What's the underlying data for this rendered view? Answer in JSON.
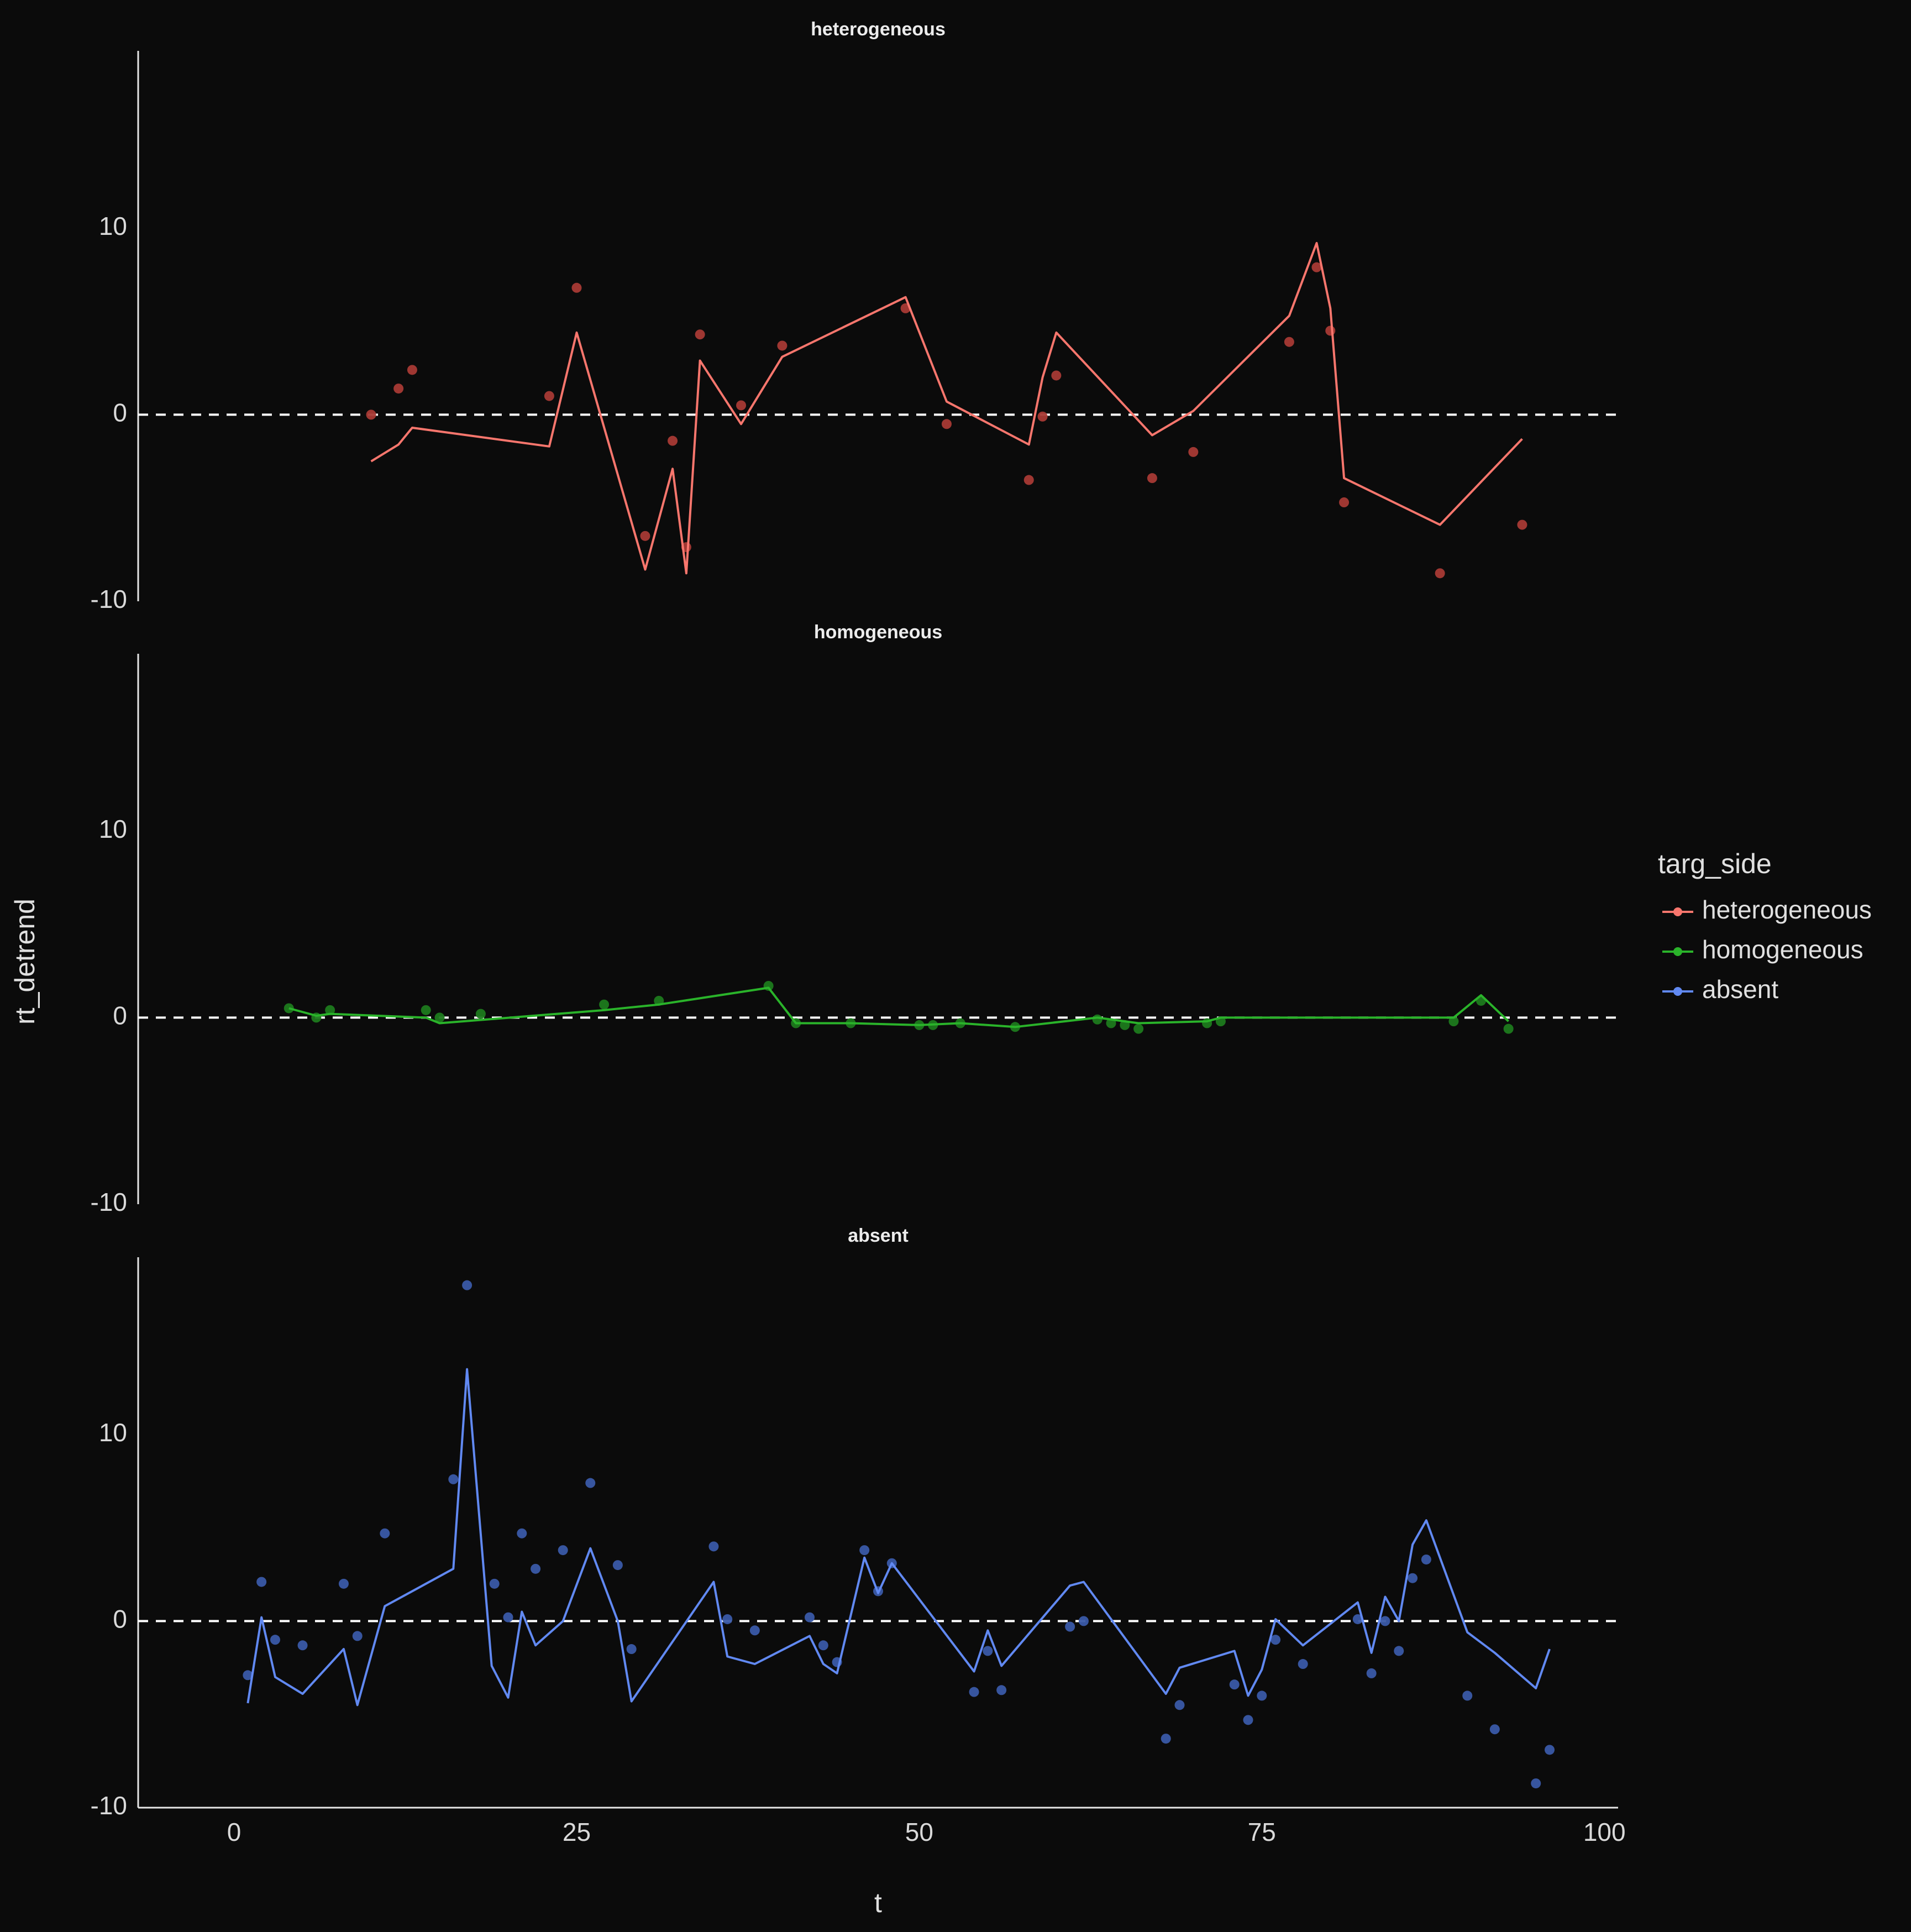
{
  "chart_data": {
    "type": "line",
    "xlabel": "t",
    "ylabel": "rt_detrend",
    "xlim": [
      -7,
      101
    ],
    "ylim": [
      -10,
      19.5
    ],
    "x_ticks": [
      0,
      25,
      50,
      75,
      100
    ],
    "y_ticks": [
      -10,
      0,
      10
    ],
    "reference_line": {
      "y": 0,
      "style": "dashed",
      "color": "#ffffff"
    },
    "grid": false,
    "legend": {
      "title": "targ_side",
      "position": "right",
      "entries": [
        {
          "label": "heterogeneous",
          "color": "#f8766d"
        },
        {
          "label": "homogeneous",
          "color": "#2ab32a"
        },
        {
          "label": "absent",
          "color": "#6189f2"
        }
      ]
    },
    "panels": [
      {
        "title": "heterogeneous",
        "color": "#f8766d",
        "point_color": "#a83a35",
        "points": [
          [
            10,
            0
          ],
          [
            12,
            1.4
          ],
          [
            13,
            2.4
          ],
          [
            23,
            1
          ],
          [
            25,
            6.8
          ],
          [
            30,
            -6.5
          ],
          [
            32,
            -1.4
          ],
          [
            33,
            -7.1
          ],
          [
            34,
            4.3
          ],
          [
            37,
            0.5
          ],
          [
            40,
            3.7
          ],
          [
            49,
            5.7
          ],
          [
            52,
            -0.5
          ],
          [
            58,
            -3.5
          ],
          [
            59,
            -0.1
          ],
          [
            60,
            2.1
          ],
          [
            67,
            -3.4
          ],
          [
            70,
            -2
          ],
          [
            77,
            3.9
          ],
          [
            79,
            7.9
          ],
          [
            80,
            4.5
          ],
          [
            81,
            -4.7
          ],
          [
            88,
            -8.5
          ],
          [
            94,
            -5.9
          ]
        ],
        "line": [
          [
            10,
            -2.5
          ],
          [
            12,
            -1.6
          ],
          [
            13,
            -0.7
          ],
          [
            23,
            -1.7
          ],
          [
            25,
            4.4
          ],
          [
            30,
            -8.3
          ],
          [
            32,
            -2.9
          ],
          [
            33,
            -8.5
          ],
          [
            34,
            2.9
          ],
          [
            37,
            -0.5
          ],
          [
            40,
            3.1
          ],
          [
            49,
            6.3
          ],
          [
            52,
            0.7
          ],
          [
            58,
            -1.6
          ],
          [
            59,
            2
          ],
          [
            60,
            4.4
          ],
          [
            67,
            -1.1
          ],
          [
            70,
            0.2
          ],
          [
            77,
            5.3
          ],
          [
            79,
            9.2
          ],
          [
            80,
            5.7
          ],
          [
            81,
            -3.4
          ],
          [
            88,
            -5.9
          ],
          [
            94,
            -1.3
          ]
        ]
      },
      {
        "title": "homogeneous",
        "color": "#2ab32a",
        "point_color": "#1e7a1e",
        "points": [
          [
            4,
            0.5
          ],
          [
            6,
            0
          ],
          [
            7,
            0.4
          ],
          [
            14,
            0.4
          ],
          [
            15,
            0
          ],
          [
            18,
            0.2
          ],
          [
            27,
            0.7
          ],
          [
            31,
            0.9
          ],
          [
            39,
            1.7
          ],
          [
            41,
            -0.3
          ],
          [
            45,
            -0.3
          ],
          [
            50,
            -0.4
          ],
          [
            51,
            -0.4
          ],
          [
            53,
            -0.3
          ],
          [
            57,
            -0.5
          ],
          [
            63,
            -0.1
          ],
          [
            64,
            -0.3
          ],
          [
            65,
            -0.4
          ],
          [
            66,
            -0.6
          ],
          [
            71,
            -0.3
          ],
          [
            72,
            -0.2
          ],
          [
            89,
            -0.2
          ],
          [
            91,
            0.9
          ],
          [
            93,
            -0.6
          ]
        ],
        "line": [
          [
            4,
            0.5
          ],
          [
            6,
            0.1
          ],
          [
            7,
            0.2
          ],
          [
            14,
            0
          ],
          [
            15,
            -0.3
          ],
          [
            27,
            0.4
          ],
          [
            31,
            0.7
          ],
          [
            39,
            1.6
          ],
          [
            41,
            -0.3
          ],
          [
            45,
            -0.3
          ],
          [
            50,
            -0.4
          ],
          [
            53,
            -0.3
          ],
          [
            57,
            -0.5
          ],
          [
            63,
            0
          ],
          [
            66,
            -0.3
          ],
          [
            71,
            -0.2
          ],
          [
            72,
            0
          ],
          [
            89,
            0
          ],
          [
            91,
            1.2
          ],
          [
            93,
            -0.2
          ]
        ]
      },
      {
        "title": "absent",
        "color": "#6189f2",
        "point_color": "#3a5aa8",
        "points": [
          [
            1,
            -2.9
          ],
          [
            2,
            2.1
          ],
          [
            3,
            -1
          ],
          [
            5,
            -1.3
          ],
          [
            8,
            2
          ],
          [
            9,
            -0.8
          ],
          [
            11,
            4.7
          ],
          [
            16,
            7.6
          ],
          [
            17,
            18
          ],
          [
            19,
            2
          ],
          [
            20,
            0.2
          ],
          [
            21,
            4.7
          ],
          [
            22,
            2.8
          ],
          [
            24,
            3.8
          ],
          [
            26,
            7.4
          ],
          [
            28,
            3
          ],
          [
            29,
            -1.5
          ],
          [
            35,
            4
          ],
          [
            36,
            0.1
          ],
          [
            38,
            -0.5
          ],
          [
            42,
            0.2
          ],
          [
            43,
            -1.3
          ],
          [
            44,
            -2.2
          ],
          [
            46,
            3.8
          ],
          [
            47,
            1.6
          ],
          [
            48,
            3.1
          ],
          [
            54,
            -3.8
          ],
          [
            55,
            -1.6
          ],
          [
            56,
            -3.7
          ],
          [
            61,
            -0.3
          ],
          [
            62,
            0
          ],
          [
            68,
            -6.3
          ],
          [
            69,
            -4.5
          ],
          [
            73,
            -3.4
          ],
          [
            74,
            -5.3
          ],
          [
            75,
            -4
          ],
          [
            76,
            -1
          ],
          [
            78,
            -2.3
          ],
          [
            82,
            0.1
          ],
          [
            83,
            -2.8
          ],
          [
            84,
            0
          ],
          [
            85,
            -1.6
          ],
          [
            86,
            2.3
          ],
          [
            87,
            3.3
          ],
          [
            90,
            -4
          ],
          [
            92,
            -5.8
          ],
          [
            95,
            -8.7
          ],
          [
            96,
            -6.9
          ]
        ],
        "line": [
          [
            1,
            -4.4
          ],
          [
            2,
            0.2
          ],
          [
            3,
            -3
          ],
          [
            5,
            -3.9
          ],
          [
            8,
            -1.5
          ],
          [
            9,
            -4.5
          ],
          [
            11,
            0.8
          ],
          [
            16,
            2.8
          ],
          [
            17,
            13.5
          ],
          [
            18.8,
            -2.4
          ],
          [
            20,
            -4.1
          ],
          [
            21,
            0.5
          ],
          [
            22,
            -1.3
          ],
          [
            24,
            0
          ],
          [
            26,
            3.9
          ],
          [
            28,
            0
          ],
          [
            29,
            -4.3
          ],
          [
            35,
            2.1
          ],
          [
            36,
            -1.9
          ],
          [
            38,
            -2.3
          ],
          [
            42,
            -0.8
          ],
          [
            43,
            -2.3
          ],
          [
            44,
            -2.8
          ],
          [
            46,
            3.4
          ],
          [
            47,
            1.5
          ],
          [
            48,
            3.1
          ],
          [
            54,
            -2.7
          ],
          [
            55,
            -0.5
          ],
          [
            56,
            -2.4
          ],
          [
            61,
            1.9
          ],
          [
            62,
            2.1
          ],
          [
            68,
            -3.9
          ],
          [
            69,
            -2.5
          ],
          [
            73,
            -1.6
          ],
          [
            74,
            -4
          ],
          [
            75,
            -2.6
          ],
          [
            76,
            0.1
          ],
          [
            78,
            -1.3
          ],
          [
            82,
            1
          ],
          [
            83,
            -1.7
          ],
          [
            84,
            1.3
          ],
          [
            85,
            0
          ],
          [
            86,
            4.1
          ],
          [
            87,
            5.4
          ],
          [
            90,
            -0.6
          ],
          [
            92,
            -1.7
          ],
          [
            95,
            -3.6
          ],
          [
            96,
            -1.5
          ]
        ]
      }
    ]
  }
}
